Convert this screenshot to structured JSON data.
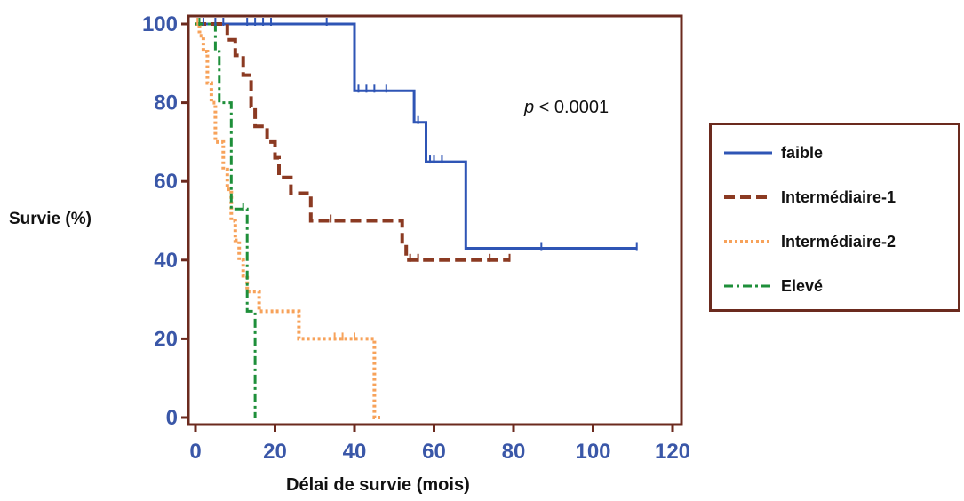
{
  "chart_data": {
    "type": "line",
    "subtype": "kaplan-meier step",
    "ylabel": "Survie (%)",
    "xlabel": "Délai de survie (mois)",
    "annotation": {
      "prefix": "p",
      "text": " < 0.0001"
    },
    "xlim": [
      0,
      120
    ],
    "ylim": [
      0,
      100
    ],
    "x_ticks": [
      "0",
      "20",
      "40",
      "60",
      "80",
      "100",
      "120"
    ],
    "y_ticks": [
      "0",
      "20",
      "40",
      "60",
      "80",
      "100"
    ],
    "tick_color": "#3a57a8",
    "frame_color": "#6b2a1e",
    "grid": false,
    "legend_position": "right",
    "series": [
      {
        "name": "faible",
        "color": "#2f55b5",
        "dash": "solid",
        "steps": [
          [
            0,
            100
          ],
          [
            40,
            100
          ],
          [
            40,
            83
          ],
          [
            55,
            83
          ],
          [
            55,
            75
          ],
          [
            58,
            75
          ],
          [
            58,
            65
          ],
          [
            68,
            65
          ],
          [
            68,
            43
          ],
          [
            111,
            43
          ]
        ],
        "censored": [
          [
            2,
            100
          ],
          [
            5,
            100
          ],
          [
            7,
            100
          ],
          [
            13,
            100
          ],
          [
            15,
            100
          ],
          [
            17,
            100
          ],
          [
            19,
            100
          ],
          [
            33,
            100
          ],
          [
            41,
            83
          ],
          [
            43,
            83
          ],
          [
            45,
            83
          ],
          [
            48,
            83
          ],
          [
            56,
            75
          ],
          [
            59,
            65
          ],
          [
            60,
            65
          ],
          [
            62,
            65
          ],
          [
            87,
            43
          ],
          [
            111,
            43
          ]
        ]
      },
      {
        "name": "Intermédiaire-1",
        "color": "#8b3a22",
        "dash": "dashed",
        "steps": [
          [
            0,
            100
          ],
          [
            8,
            100
          ],
          [
            8,
            96
          ],
          [
            10,
            96
          ],
          [
            10,
            92
          ],
          [
            12,
            92
          ],
          [
            12,
            87
          ],
          [
            14,
            87
          ],
          [
            14,
            79
          ],
          [
            15,
            79
          ],
          [
            15,
            74
          ],
          [
            18,
            74
          ],
          [
            18,
            70
          ],
          [
            20,
            70
          ],
          [
            20,
            66
          ],
          [
            21,
            66
          ],
          [
            21,
            61
          ],
          [
            24,
            61
          ],
          [
            24,
            57
          ],
          [
            29,
            57
          ],
          [
            29,
            50
          ],
          [
            52,
            50
          ],
          [
            52,
            44
          ],
          [
            53,
            44
          ],
          [
            53,
            40
          ],
          [
            79,
            40
          ]
        ],
        "censored": [
          [
            34,
            50
          ],
          [
            54,
            40
          ],
          [
            56,
            40
          ],
          [
            74,
            40
          ],
          [
            79,
            40
          ]
        ]
      },
      {
        "name": "Intermédiaire-2",
        "color": "#f7a25a",
        "dash": "dotted",
        "steps": [
          [
            0,
            100
          ],
          [
            1,
            100
          ],
          [
            1,
            97
          ],
          [
            2,
            97
          ],
          [
            2,
            93
          ],
          [
            3,
            93
          ],
          [
            3,
            85
          ],
          [
            4,
            85
          ],
          [
            4,
            80
          ],
          [
            5,
            80
          ],
          [
            5,
            70
          ],
          [
            7,
            70
          ],
          [
            7,
            63
          ],
          [
            8,
            63
          ],
          [
            8,
            58
          ],
          [
            9,
            58
          ],
          [
            9,
            50
          ],
          [
            10,
            50
          ],
          [
            10,
            45
          ],
          [
            11,
            45
          ],
          [
            11,
            40
          ],
          [
            12,
            40
          ],
          [
            12,
            36
          ],
          [
            13,
            36
          ],
          [
            13,
            32
          ],
          [
            16,
            32
          ],
          [
            16,
            27
          ],
          [
            26,
            27
          ],
          [
            26,
            20
          ],
          [
            45,
            20
          ],
          [
            45,
            0
          ],
          [
            47,
            0
          ]
        ],
        "censored": [
          [
            0.5,
            100
          ],
          [
            35,
            20
          ],
          [
            37,
            20
          ],
          [
            40,
            20
          ]
        ]
      },
      {
        "name": "Elevé",
        "color": "#1e8f3a",
        "dash": "dashdot",
        "steps": [
          [
            0,
            100
          ],
          [
            5,
            100
          ],
          [
            5,
            93
          ],
          [
            6,
            93
          ],
          [
            6,
            80
          ],
          [
            9,
            80
          ],
          [
            9,
            53
          ],
          [
            13,
            53
          ],
          [
            13,
            27
          ],
          [
            15,
            27
          ],
          [
            15,
            0
          ]
        ],
        "censored": [
          [
            1,
            100
          ],
          [
            12,
            53
          ]
        ]
      }
    ]
  }
}
